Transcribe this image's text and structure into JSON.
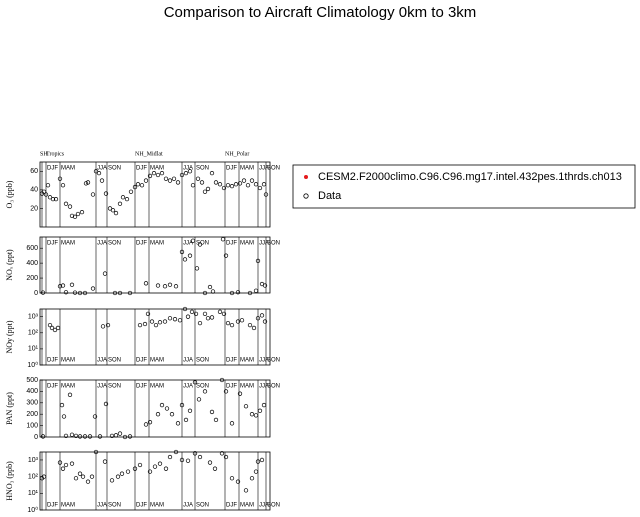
{
  "title": "Comparison to Aircraft Climatology  0km to 3km",
  "legend": [
    {
      "label": "CESM2.F2000climo.C96.C96.mg17.intel.432pes.1thrds.ch013",
      "marker": "dot",
      "color": "#e41a1c"
    },
    {
      "label": "Data",
      "marker": "circle",
      "color": "#000000"
    }
  ],
  "xlim": [
    0,
    230
  ],
  "regions": [
    {
      "label": "SH",
      "x": 0
    },
    {
      "label": "Tropics",
      "x": 6
    },
    {
      "label": "NH_Midlat",
      "x": 95
    },
    {
      "label": "NH_Polar",
      "x": 185
    }
  ],
  "dividers": [
    2,
    6,
    20,
    56,
    67,
    95,
    109,
    142,
    155,
    185,
    199,
    218,
    226
  ],
  "seasons": [
    {
      "label": "DJF",
      "x": 6
    },
    {
      "label": "MAM",
      "x": 20
    },
    {
      "label": "JJA",
      "x": 56
    },
    {
      "label": "SON",
      "x": 67
    },
    {
      "label": "DJF",
      "x": 95
    },
    {
      "label": "MAM",
      "x": 109
    },
    {
      "label": "JJA",
      "x": 142
    },
    {
      "label": "SON",
      "x": 155
    },
    {
      "label": "DJF",
      "x": 185
    },
    {
      "label": "MAM",
      "x": 199
    },
    {
      "label": "JJA",
      "x": 218
    },
    {
      "label": "SON",
      "x": 226
    }
  ],
  "chart_data": [
    {
      "type": "scatter",
      "ylabel": "O₃ (ppb)",
      "log": false,
      "season_labels": "top",
      "ylim": [
        0,
        70
      ],
      "yticks": [
        20,
        40,
        60
      ],
      "x": [
        2,
        4,
        6,
        8,
        10,
        13,
        16,
        20,
        23,
        26,
        30,
        32,
        35,
        38,
        42,
        46,
        48,
        53,
        56,
        59,
        62,
        66,
        70,
        73,
        76,
        80,
        83,
        87,
        91,
        95,
        98,
        102,
        106,
        110,
        114,
        118,
        122,
        126,
        130,
        134,
        138,
        142,
        146,
        150,
        153,
        158,
        162,
        165,
        168,
        172,
        176,
        180,
        184,
        188,
        192,
        196,
        200,
        204,
        208,
        212,
        216,
        220,
        224,
        226
      ],
      "values": [
        36,
        38,
        35,
        45,
        32,
        30,
        30,
        52,
        45,
        25,
        22,
        12,
        11,
        14,
        16,
        47,
        48,
        35,
        60,
        58,
        50,
        36,
        20,
        18,
        15,
        25,
        32,
        30,
        38,
        43,
        46,
        45,
        50,
        55,
        58,
        56,
        58,
        52,
        50,
        52,
        48,
        56,
        58,
        60,
        45,
        52,
        48,
        38,
        41,
        58,
        48,
        46,
        42,
        45,
        44,
        46,
        47,
        50,
        45,
        50,
        46,
        42,
        46,
        35
      ]
    },
    {
      "type": "scatter",
      "ylabel": "NOₓ (ppt)",
      "log": false,
      "season_labels": "top",
      "ylim": [
        0,
        750
      ],
      "yticks": [
        0,
        200,
        400,
        600
      ],
      "x": [
        3,
        20,
        23,
        26,
        32,
        35,
        40,
        45,
        53,
        65,
        75,
        80,
        90,
        106,
        118,
        125,
        130,
        136,
        142,
        145,
        150,
        153,
        157,
        160,
        165,
        170,
        173,
        183,
        186,
        192,
        198,
        210,
        216,
        218,
        222,
        225
      ],
      "values": [
        5,
        90,
        100,
        10,
        110,
        5,
        0,
        0,
        60,
        260,
        0,
        0,
        0,
        130,
        100,
        90,
        110,
        90,
        550,
        450,
        500,
        700,
        330,
        650,
        0,
        80,
        20,
        720,
        500,
        0,
        10,
        0,
        30,
        430,
        120,
        100
      ]
    },
    {
      "type": "scatter",
      "ylabel": "NOy (ppt)",
      "log": true,
      "season_labels": "bottom",
      "ylim": [
        1,
        3000
      ],
      "yticks": [
        {
          "value": 1,
          "label": "10⁰"
        },
        {
          "value": 10,
          "label": "10¹"
        },
        {
          "value": 100,
          "label": "10²"
        },
        {
          "value": 1000,
          "label": "10³"
        }
      ],
      "x": [
        10,
        12,
        15,
        18,
        63,
        68,
        100,
        105,
        108,
        112,
        116,
        120,
        125,
        130,
        135,
        140,
        145,
        148,
        152,
        156,
        160,
        165,
        168,
        172,
        180,
        184,
        188,
        192,
        198,
        202,
        210,
        214,
        218,
        222,
        225
      ],
      "values": [
        300,
        200,
        150,
        200,
        250,
        300,
        300,
        350,
        1500,
        500,
        300,
        450,
        500,
        800,
        700,
        600,
        3000,
        1000,
        2000,
        1500,
        400,
        1500,
        800,
        900,
        2000,
        1500,
        400,
        300,
        500,
        600,
        300,
        200,
        800,
        1200,
        500
      ]
    },
    {
      "type": "scatter",
      "ylabel": "PAN (ppt)",
      "log": false,
      "season_labels": "top",
      "ylim": [
        0,
        500
      ],
      "yticks": [
        0,
        100,
        200,
        300,
        400,
        500
      ],
      "x": [
        3,
        22,
        24,
        30,
        26,
        32,
        36,
        40,
        45,
        50,
        55,
        60,
        66,
        72,
        76,
        80,
        85,
        90,
        106,
        110,
        118,
        122,
        127,
        132,
        138,
        142,
        146,
        150,
        155,
        159,
        165,
        172,
        176,
        182,
        186,
        192,
        200,
        206,
        212,
        216,
        220,
        224
      ],
      "values": [
        5,
        280,
        180,
        370,
        10,
        20,
        10,
        5,
        5,
        5,
        180,
        5,
        290,
        10,
        15,
        30,
        0,
        5,
        110,
        130,
        200,
        280,
        250,
        200,
        120,
        280,
        150,
        230,
        480,
        330,
        400,
        220,
        150,
        500,
        400,
        120,
        380,
        270,
        200,
        190,
        230,
        280
      ]
    },
    {
      "type": "scatter",
      "ylabel": "HNO₃ (ppb)",
      "log": true,
      "season_labels": "bottom",
      "ylim": [
        1,
        3000
      ],
      "yticks": [
        {
          "value": 1,
          "label": "10⁰"
        },
        {
          "value": 10,
          "label": "10¹"
        },
        {
          "value": 100,
          "label": "10²"
        },
        {
          "value": 1000,
          "label": "10³"
        }
      ],
      "x": [
        2,
        4,
        20,
        23,
        26,
        32,
        36,
        40,
        43,
        48,
        52,
        56,
        65,
        72,
        78,
        82,
        88,
        95,
        100,
        110,
        115,
        120,
        126,
        130,
        136,
        142,
        148,
        155,
        160,
        170,
        175,
        182,
        186,
        192,
        198,
        206,
        212,
        216,
        218,
        222
      ],
      "values": [
        80,
        100,
        700,
        300,
        500,
        600,
        80,
        150,
        100,
        50,
        100,
        3000,
        800,
        60,
        100,
        150,
        200,
        300,
        500,
        200,
        400,
        600,
        300,
        1500,
        3000,
        1000,
        900,
        2500,
        1500,
        700,
        300,
        2500,
        1500,
        80,
        50,
        15,
        80,
        200,
        800,
        1000
      ]
    }
  ]
}
